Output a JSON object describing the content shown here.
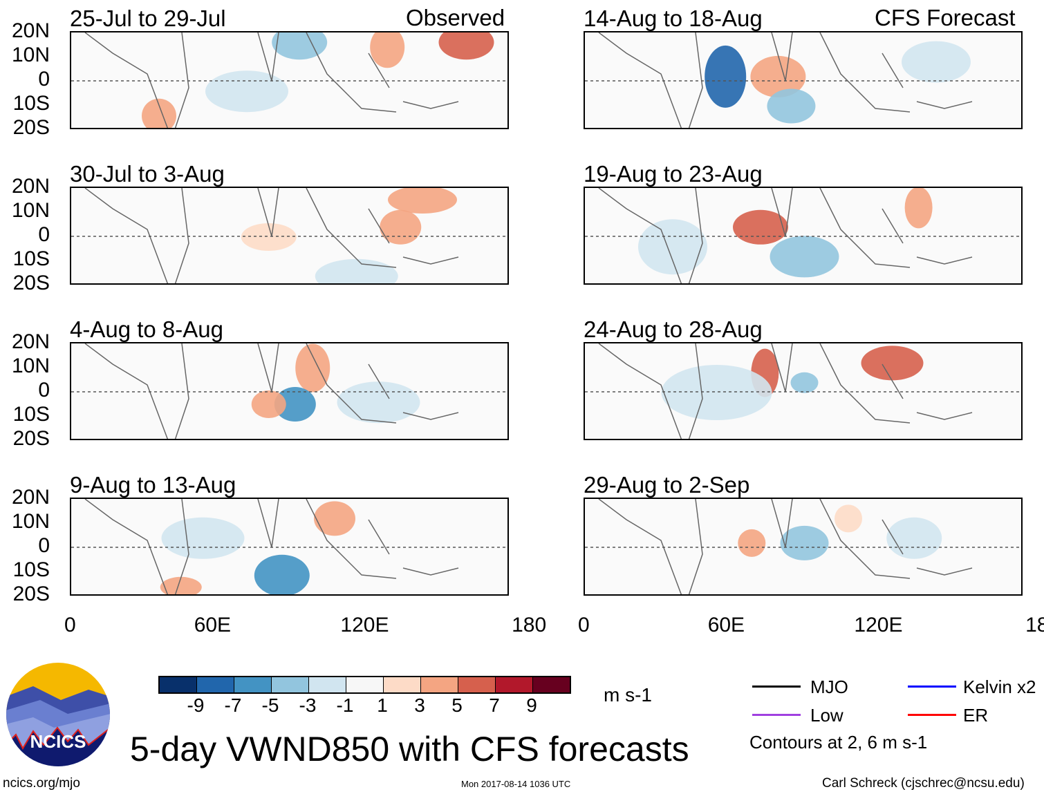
{
  "headers": {
    "observed": "Observed",
    "forecast": "CFS Forecast"
  },
  "panels_left": [
    {
      "title": "25-Jul to 29-Jul"
    },
    {
      "title": "30-Jul to 3-Aug"
    },
    {
      "title": "4-Aug to 8-Aug"
    },
    {
      "title": "9-Aug to 13-Aug"
    }
  ],
  "panels_right": [
    {
      "title": "14-Aug to 18-Aug"
    },
    {
      "title": "19-Aug to 23-Aug"
    },
    {
      "title": "24-Aug to 28-Aug"
    },
    {
      "title": "29-Aug to 2-Sep"
    }
  ],
  "lat_labels": [
    "20N",
    "10N",
    "0",
    "10S",
    "20S"
  ],
  "lon_labels": [
    "0",
    "60E",
    "120E",
    "180"
  ],
  "colorbar": {
    "colors": [
      "#08306b",
      "#2166ac",
      "#4393c3",
      "#92c5de",
      "#d1e5f0",
      "#f7f7f7",
      "#fddbc7",
      "#f4a582",
      "#d6604d",
      "#b2182b",
      "#67001f"
    ],
    "labels": [
      "-9",
      "-7",
      "-5",
      "-3",
      "-1",
      "1",
      "3",
      "5",
      "7",
      "9"
    ],
    "units": "m s-1"
  },
  "legend": {
    "items": [
      {
        "label": "MJO",
        "color": "#000000"
      },
      {
        "label": "Kelvin x2",
        "color": "#0000ff"
      },
      {
        "label": "Low",
        "color": "#a040e0"
      },
      {
        "label": "ER",
        "color": "#ff0000"
      }
    ],
    "contours_note": "Contours at 2, 6 m s-1"
  },
  "title": "5-day VWND850 with CFS forecasts",
  "logo_text": "NCICS",
  "footer": {
    "url": "ncics.org/mjo",
    "timestamp": "Mon 2017-08-14 1036 UTC",
    "author": "Carl Schreck (cjschrec@ncsu.edu)"
  }
}
